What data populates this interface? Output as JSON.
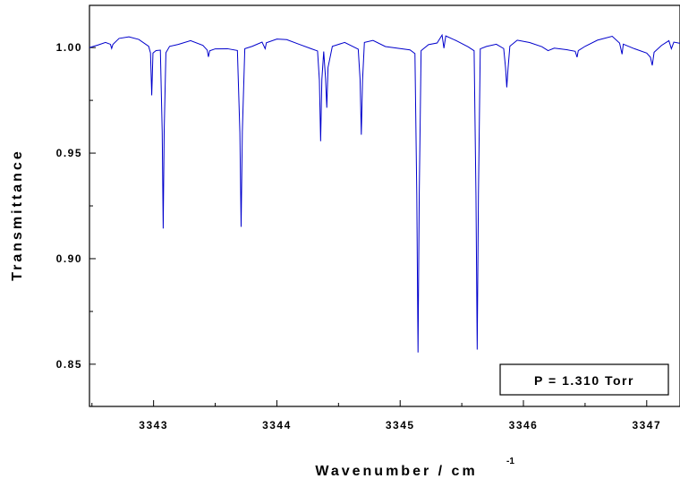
{
  "chart_data": {
    "type": "line",
    "xlabel": "Wavenumber / cm",
    "xlabel_superscript": "-1",
    "ylabel": "Transmittance",
    "xlim": [
      3342.48,
      3347.27
    ],
    "ylim": [
      0.83,
      1.02
    ],
    "x_ticks": [
      3343,
      3344,
      3345,
      3346,
      3347
    ],
    "x_tick_labels": [
      "3343",
      "3344",
      "3345",
      "3346",
      "3347"
    ],
    "y_ticks": [
      0.85,
      0.9,
      0.95,
      1.0
    ],
    "y_tick_labels": [
      "0.85",
      "0.90",
      "0.95",
      "1.00"
    ],
    "grid": false,
    "annotation": "P = 1.310 Torr",
    "series": [
      {
        "color": "#0000cc",
        "points": [
          [
            3342.48,
            1.0
          ],
          [
            3342.55,
            1.001
          ],
          [
            3342.61,
            1.002
          ],
          [
            3342.65,
            1.001
          ],
          [
            3342.66,
            0.999
          ],
          [
            3342.67,
            1.001
          ],
          [
            3342.72,
            1.004
          ],
          [
            3342.8,
            1.005
          ],
          [
            3342.88,
            1.004
          ],
          [
            3342.96,
            1.001
          ],
          [
            3342.975,
            0.998
          ],
          [
            3342.985,
            0.978
          ],
          [
            3342.995,
            0.998
          ],
          [
            3343.02,
            0.999
          ],
          [
            3343.055,
            0.999
          ],
          [
            3343.07,
            0.96
          ],
          [
            3343.078,
            0.914
          ],
          [
            3343.086,
            0.96
          ],
          [
            3343.1,
            0.997
          ],
          [
            3343.13,
            1.0
          ],
          [
            3343.2,
            1.001
          ],
          [
            3343.3,
            1.003
          ],
          [
            3343.4,
            1.001
          ],
          [
            3343.435,
            0.999
          ],
          [
            3343.445,
            0.996
          ],
          [
            3343.455,
            0.999
          ],
          [
            3343.5,
            1.0
          ],
          [
            3343.6,
            1.0
          ],
          [
            3343.68,
            0.999
          ],
          [
            3343.7,
            0.96
          ],
          [
            3343.71,
            0.915
          ],
          [
            3343.72,
            0.96
          ],
          [
            3343.74,
            0.999
          ],
          [
            3343.8,
            1.0
          ],
          [
            3343.88,
            1.002
          ],
          [
            3343.905,
            0.999
          ],
          [
            3343.915,
            1.002
          ],
          [
            3344.0,
            1.004
          ],
          [
            3344.08,
            1.004
          ],
          [
            3344.18,
            1.002
          ],
          [
            3344.28,
            1.0
          ],
          [
            3344.33,
            0.999
          ],
          [
            3344.345,
            0.985
          ],
          [
            3344.355,
            0.956
          ],
          [
            3344.365,
            0.985
          ],
          [
            3344.38,
            0.998
          ],
          [
            3344.395,
            0.985
          ],
          [
            3344.405,
            0.971
          ],
          [
            3344.415,
            0.99
          ],
          [
            3344.45,
            1.0
          ],
          [
            3344.55,
            1.002
          ],
          [
            3344.66,
            0.999
          ],
          [
            3344.675,
            0.985
          ],
          [
            3344.685,
            0.959
          ],
          [
            3344.695,
            0.985
          ],
          [
            3344.71,
            1.003
          ],
          [
            3344.78,
            1.004
          ],
          [
            3344.88,
            1.001
          ],
          [
            3344.98,
            1.0
          ],
          [
            3345.08,
            0.999
          ],
          [
            3345.12,
            0.997
          ],
          [
            3345.135,
            0.93
          ],
          [
            3345.145,
            0.855
          ],
          [
            3345.155,
            0.93
          ],
          [
            3345.17,
            0.998
          ],
          [
            3345.23,
            1.001
          ],
          [
            3345.3,
            1.002
          ],
          [
            3345.34,
            1.006
          ],
          [
            3345.355,
            1.0
          ],
          [
            3345.37,
            1.006
          ],
          [
            3345.45,
            1.004
          ],
          [
            3345.55,
            1.001
          ],
          [
            3345.6,
            0.999
          ],
          [
            3345.615,
            0.93
          ],
          [
            3345.625,
            0.857
          ],
          [
            3345.635,
            0.93
          ],
          [
            3345.65,
            0.999
          ],
          [
            3345.7,
            1.0
          ],
          [
            3345.78,
            1.001
          ],
          [
            3345.84,
            0.999
          ],
          [
            3345.855,
            0.99
          ],
          [
            3345.865,
            0.981
          ],
          [
            3345.875,
            0.99
          ],
          [
            3345.89,
            1.001
          ],
          [
            3345.95,
            1.004
          ],
          [
            3346.05,
            1.003
          ],
          [
            3346.15,
            1.001
          ],
          [
            3346.2,
            0.999
          ],
          [
            3346.25,
            1.0
          ],
          [
            3346.35,
            0.999
          ],
          [
            3346.42,
            0.998
          ],
          [
            3346.435,
            0.995
          ],
          [
            3346.445,
            0.998
          ],
          [
            3346.5,
            1.0
          ],
          [
            3346.6,
            1.003
          ],
          [
            3346.72,
            1.005
          ],
          [
            3346.78,
            1.002
          ],
          [
            3346.8,
            0.997
          ],
          [
            3346.81,
            1.002
          ],
          [
            3346.9,
            1.0
          ],
          [
            3347.0,
            0.998
          ],
          [
            3347.03,
            0.996
          ],
          [
            3347.045,
            0.992
          ],
          [
            3347.06,
            0.998
          ],
          [
            3347.12,
            1.001
          ],
          [
            3347.18,
            1.003
          ],
          [
            3347.2,
            0.999
          ],
          [
            3347.22,
            1.002
          ],
          [
            3347.27,
            1.002
          ]
        ]
      }
    ]
  }
}
